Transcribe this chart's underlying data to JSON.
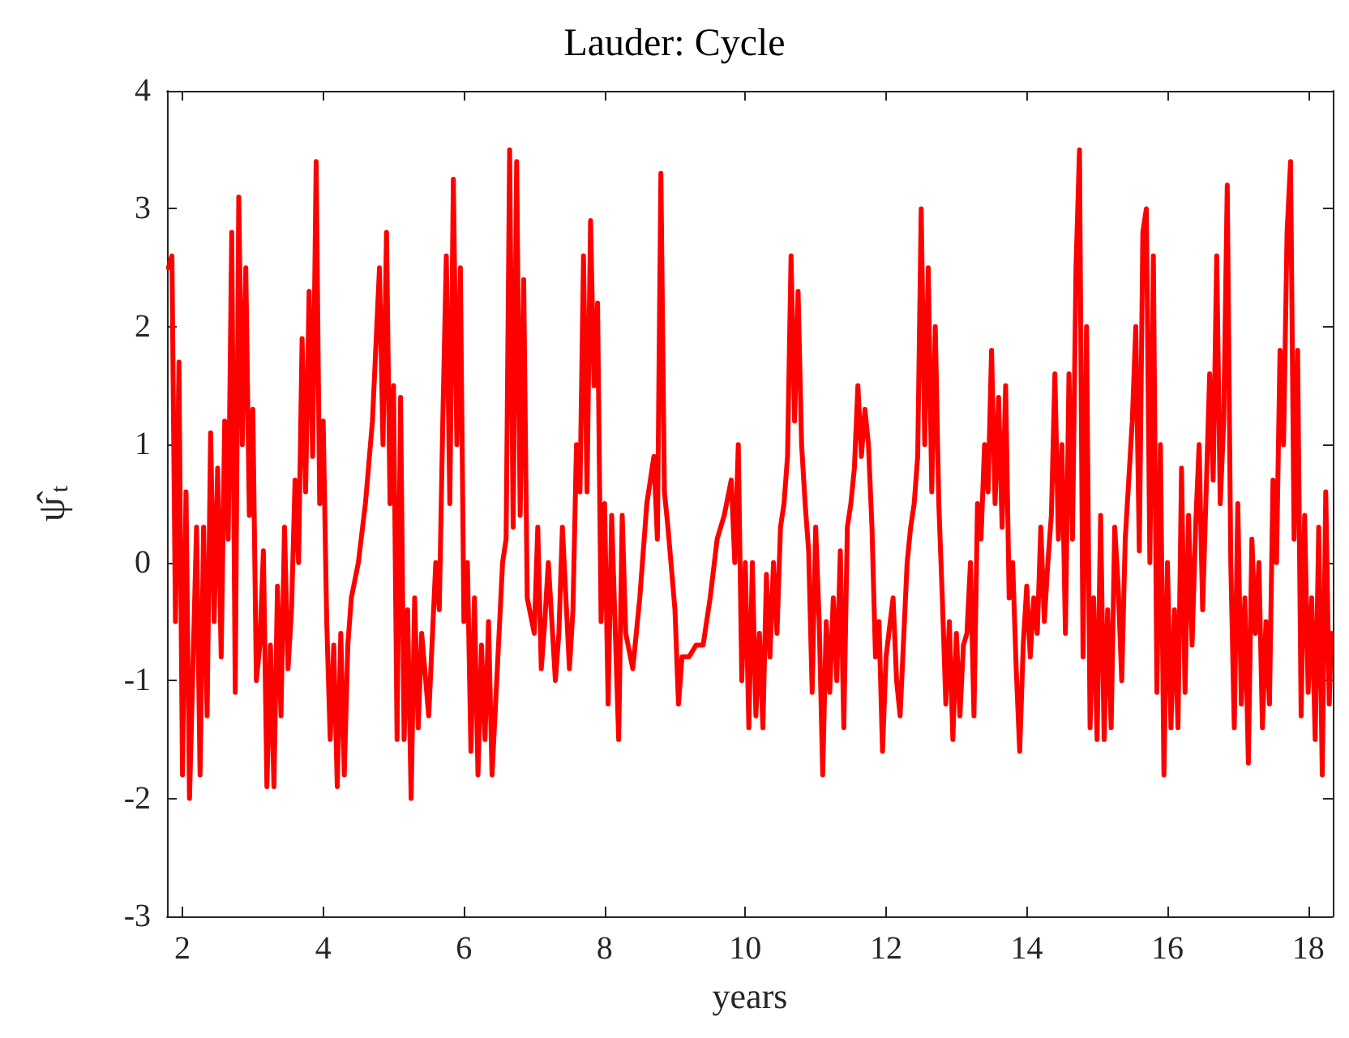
{
  "chart_data": {
    "type": "line",
    "title": "Lauder: Cycle",
    "xlabel": "years",
    "ylabel": "ψ̂$_{t}$",
    "xlim": [
      1.78,
      18.35
    ],
    "ylim": [
      -3,
      4
    ],
    "xticks": [
      2,
      4,
      6,
      8,
      10,
      12,
      14,
      16,
      18
    ],
    "yticks": [
      -3,
      -2,
      -1,
      0,
      1,
      2,
      3,
      4
    ],
    "grid": false,
    "marker": "none",
    "line_style": "solid",
    "series": [
      {
        "color": "#ff0000",
        "x": [
          1.8,
          1.85,
          1.9,
          1.95,
          2.0,
          2.05,
          2.1,
          2.2,
          2.25,
          2.3,
          2.35,
          2.4,
          2.45,
          2.5,
          2.55,
          2.6,
          2.65,
          2.7,
          2.75,
          2.8,
          2.85,
          2.9,
          2.95,
          3.0,
          3.05,
          3.1,
          3.15,
          3.2,
          3.25,
          3.3,
          3.35,
          3.4,
          3.45,
          3.5,
          3.55,
          3.6,
          3.65,
          3.7,
          3.75,
          3.8,
          3.85,
          3.9,
          3.95,
          4.0,
          4.05,
          4.1,
          4.15,
          4.2,
          4.25,
          4.3,
          4.35,
          4.4,
          4.5,
          4.6,
          4.7,
          4.8,
          4.85,
          4.9,
          4.95,
          5.0,
          5.05,
          5.1,
          5.15,
          5.2,
          5.25,
          5.3,
          5.35,
          5.4,
          5.5,
          5.6,
          5.65,
          5.7,
          5.75,
          5.8,
          5.85,
          5.9,
          5.95,
          6.0,
          6.05,
          6.1,
          6.15,
          6.2,
          6.25,
          6.3,
          6.35,
          6.4,
          6.5,
          6.55,
          6.6,
          6.65,
          6.7,
          6.75,
          6.8,
          6.85,
          6.9,
          7.0,
          7.05,
          7.1,
          7.15,
          7.2,
          7.3,
          7.35,
          7.4,
          7.5,
          7.55,
          7.6,
          7.65,
          7.7,
          7.75,
          7.8,
          7.85,
          7.9,
          7.95,
          8.0,
          8.05,
          8.1,
          8.2,
          8.25,
          8.3,
          8.4,
          8.5,
          8.6,
          8.7,
          8.75,
          8.8,
          8.85,
          8.9,
          9.0,
          9.05,
          9.1,
          9.2,
          9.3,
          9.4,
          9.5,
          9.6,
          9.7,
          9.8,
          9.85,
          9.9,
          9.95,
          10.0,
          10.05,
          10.1,
          10.15,
          10.2,
          10.25,
          10.3,
          10.35,
          10.4,
          10.45,
          10.5,
          10.55,
          10.6,
          10.65,
          10.7,
          10.75,
          10.8,
          10.85,
          10.9,
          10.95,
          11.0,
          11.05,
          11.1,
          11.15,
          11.2,
          11.25,
          11.3,
          11.35,
          11.4,
          11.45,
          11.5,
          11.55,
          11.6,
          11.65,
          11.7,
          11.75,
          11.8,
          11.85,
          11.9,
          11.95,
          12.0,
          12.1,
          12.15,
          12.2,
          12.3,
          12.35,
          12.4,
          12.45,
          12.5,
          12.55,
          12.6,
          12.65,
          12.7,
          12.75,
          12.8,
          12.85,
          12.9,
          12.95,
          13.0,
          13.05,
          13.1,
          13.15,
          13.2,
          13.25,
          13.3,
          13.35,
          13.4,
          13.45,
          13.5,
          13.55,
          13.6,
          13.65,
          13.7,
          13.75,
          13.8,
          13.85,
          13.9,
          13.95,
          14.0,
          14.05,
          14.1,
          14.15,
          14.2,
          14.25,
          14.3,
          14.35,
          14.4,
          14.45,
          14.5,
          14.55,
          14.6,
          14.65,
          14.7,
          14.75,
          14.8,
          14.85,
          14.9,
          14.95,
          15.0,
          15.05,
          15.1,
          15.15,
          15.2,
          15.25,
          15.3,
          15.35,
          15.4,
          15.5,
          15.55,
          15.6,
          15.65,
          15.7,
          15.75,
          15.8,
          15.85,
          15.9,
          15.95,
          16.0,
          16.05,
          16.1,
          16.15,
          16.2,
          16.25,
          16.3,
          16.35,
          16.4,
          16.45,
          16.5,
          16.55,
          16.6,
          16.65,
          16.7,
          16.75,
          16.8,
          16.85,
          16.9,
          16.95,
          17.0,
          17.05,
          17.1,
          17.15,
          17.2,
          17.25,
          17.3,
          17.35,
          17.4,
          17.45,
          17.5,
          17.55,
          17.6,
          17.65,
          17.7,
          17.75,
          17.8,
          17.85,
          17.9,
          17.95,
          18.0,
          18.05,
          18.1,
          18.15,
          18.2,
          18.25,
          18.3,
          18.33
        ],
        "values": [
          2.5,
          2.6,
          -0.5,
          1.7,
          -1.8,
          0.6,
          -2.0,
          0.3,
          -1.8,
          0.3,
          -1.3,
          1.1,
          -0.5,
          0.8,
          -0.8,
          1.2,
          0.2,
          2.8,
          -1.1,
          3.1,
          1.0,
          2.5,
          0.4,
          1.3,
          -1.0,
          -0.7,
          0.1,
          -1.9,
          -0.7,
          -1.9,
          -0.2,
          -1.3,
          0.3,
          -0.9,
          -0.4,
          0.7,
          0.0,
          1.9,
          0.6,
          2.3,
          0.9,
          3.4,
          0.5,
          1.2,
          -0.5,
          -1.5,
          -0.7,
          -1.9,
          -0.6,
          -1.8,
          -0.7,
          -0.3,
          0.0,
          0.5,
          1.2,
          2.5,
          1.0,
          2.8,
          0.5,
          1.5,
          -1.5,
          1.4,
          -1.5,
          -0.4,
          -2.0,
          -0.3,
          -1.4,
          -0.6,
          -1.3,
          0.0,
          -0.4,
          1.2,
          2.6,
          0.5,
          3.25,
          1.0,
          2.5,
          -0.5,
          0.0,
          -1.6,
          -0.3,
          -1.8,
          -0.7,
          -1.5,
          -0.5,
          -1.8,
          -0.6,
          0.0,
          0.2,
          3.5,
          0.3,
          3.4,
          0.4,
          2.4,
          -0.3,
          -0.6,
          0.3,
          -0.9,
          -0.5,
          0.0,
          -1.0,
          -0.6,
          0.3,
          -0.9,
          -0.4,
          1.0,
          0.6,
          2.6,
          0.6,
          2.9,
          1.5,
          2.2,
          -0.5,
          0.5,
          -1.2,
          0.4,
          -1.5,
          0.4,
          -0.6,
          -0.9,
          -0.3,
          0.5,
          0.9,
          0.2,
          3.3,
          0.6,
          0.3,
          -0.4,
          -1.2,
          -0.8,
          -0.8,
          -0.7,
          -0.7,
          -0.3,
          0.2,
          0.4,
          0.7,
          0.0,
          1.0,
          -1.0,
          0.0,
          -1.4,
          0.0,
          -1.3,
          -0.6,
          -1.4,
          -0.1,
          -0.8,
          0.0,
          -0.6,
          0.3,
          0.5,
          0.9,
          2.6,
          1.2,
          2.3,
          1.0,
          0.5,
          0.1,
          -1.1,
          0.3,
          -0.5,
          -1.8,
          -0.5,
          -1.1,
          -0.3,
          -1.0,
          0.1,
          -1.4,
          0.3,
          0.5,
          0.8,
          1.5,
          0.9,
          1.3,
          1.0,
          0.3,
          -0.8,
          -0.5,
          -1.6,
          -0.8,
          -0.3,
          -1.0,
          -1.3,
          0.0,
          0.3,
          0.5,
          0.9,
          3.0,
          1.0,
          2.5,
          0.6,
          2.0,
          0.5,
          -0.3,
          -1.2,
          -0.5,
          -1.5,
          -0.6,
          -1.3,
          -0.7,
          -0.6,
          0.0,
          -1.3,
          0.5,
          0.2,
          1.0,
          0.6,
          1.8,
          0.5,
          1.4,
          0.3,
          1.5,
          -0.3,
          0.0,
          -0.9,
          -1.6,
          -0.7,
          -0.2,
          -0.8,
          -0.3,
          -0.6,
          0.3,
          -0.5,
          0.0,
          0.4,
          1.6,
          0.2,
          1.0,
          -0.6,
          1.6,
          0.2,
          2.5,
          3.5,
          -0.8,
          2.0,
          -1.4,
          -0.3,
          -1.5,
          0.4,
          -1.5,
          -0.4,
          -1.4,
          0.3,
          -0.2,
          -1.0,
          0.2,
          1.2,
          2.0,
          0.1,
          2.8,
          3.0,
          0.0,
          2.6,
          -1.1,
          1.0,
          -1.8,
          0.0,
          -1.4,
          -0.4,
          -1.4,
          0.8,
          -1.1,
          0.4,
          -0.7,
          0.3,
          1.0,
          -0.4,
          0.6,
          1.6,
          0.7,
          2.6,
          0.5,
          1.2,
          3.2,
          0.0,
          -1.4,
          0.5,
          -1.2,
          -0.3,
          -1.7,
          0.2,
          -0.6,
          0.0,
          -1.4,
          -0.5,
          -1.2,
          0.7,
          0.0,
          1.8,
          1.0,
          2.8,
          3.4,
          0.2,
          1.8,
          -1.3,
          0.4,
          -1.1,
          -0.3,
          -1.5,
          0.3,
          -1.8,
          0.6,
          -1.2,
          -0.6
        ]
      }
    ]
  }
}
